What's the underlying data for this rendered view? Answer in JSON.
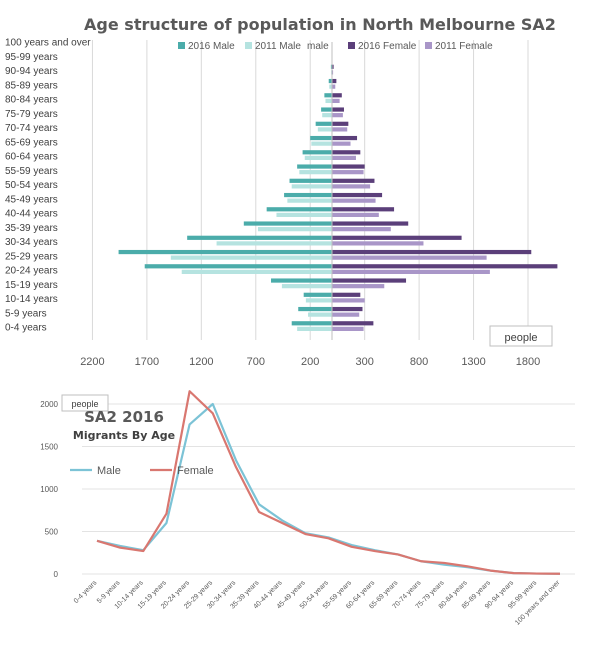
{
  "chart_data": [
    {
      "type": "bar",
      "orientation": "horizontal",
      "title": "Age structure of population in North Melbourne SA2",
      "unit_label": "people",
      "categories": [
        "0-4 years",
        "5-9 years",
        "10-14 years",
        "15-19 years",
        "20-24 years",
        "25-29 years",
        "30-34 years",
        "35-39 years",
        "40-44 years",
        "45-49 years",
        "50-54 years",
        "55-59 years",
        "60-64 years",
        "65-69 years",
        "70-74 years",
        "75-79 years",
        "80-84 years",
        "85-89 years",
        "90-94 years",
        "95-99 years",
        "100 years and over"
      ],
      "series": [
        {
          "name": "2016 Male",
          "color": "#4bacaa",
          "side": "left",
          "values": [
            370,
            310,
            260,
            560,
            1720,
            1960,
            1330,
            810,
            600,
            440,
            390,
            320,
            270,
            200,
            150,
            100,
            70,
            30,
            10,
            0,
            0
          ]
        },
        {
          "name": "2011 Male",
          "color": "#b5e3e0",
          "side": "left",
          "values": [
            320,
            220,
            240,
            460,
            1380,
            1480,
            1060,
            680,
            510,
            410,
            370,
            300,
            250,
            190,
            130,
            90,
            60,
            25,
            8,
            0,
            0
          ]
        },
        {
          "name": "2016 Female",
          "color": "#5b3f7a",
          "side": "right",
          "values": [
            380,
            280,
            260,
            680,
            2070,
            1830,
            1190,
            700,
            570,
            460,
            390,
            300,
            260,
            230,
            150,
            110,
            90,
            40,
            15,
            0,
            0
          ]
        },
        {
          "name": "2011 Female",
          "color": "#a996c8",
          "side": "right",
          "values": [
            290,
            250,
            300,
            480,
            1450,
            1420,
            840,
            540,
            430,
            400,
            350,
            290,
            220,
            170,
            140,
            100,
            70,
            30,
            10,
            0,
            0
          ]
        }
      ],
      "legend": [
        "2016 Male",
        "2011 Male",
        "male",
        "2016 Female",
        "2011 Female"
      ],
      "xticks": [
        "2200",
        "1700",
        "1200",
        "700",
        "200",
        "300",
        "800",
        "1300",
        "1800"
      ],
      "legend_position": "top",
      "grid": true
    },
    {
      "type": "line",
      "title": "SA2 2016",
      "subtitle": "Migrants By Age",
      "unit_label": "people",
      "categories": [
        "0-4 years",
        "5-9 years",
        "10-14 years",
        "15-19 years",
        "20-24 years",
        "25-29 years",
        "30-34 years",
        "35-39 years",
        "40-44 years",
        "45-49 years",
        "50-54 years",
        "55-59 years",
        "60-64 years",
        "65-69 years",
        "70-74 years",
        "75-79 years",
        "80-84 years",
        "85-89 years",
        "90-94 years",
        "95-99 years",
        "100 years and over"
      ],
      "series": [
        {
          "name": "Male",
          "color": "#7cc3d6",
          "values": [
            390,
            330,
            280,
            600,
            1760,
            2000,
            1340,
            820,
            630,
            480,
            430,
            340,
            280,
            230,
            150,
            110,
            80,
            40,
            10,
            5,
            3
          ]
        },
        {
          "name": "Female",
          "color": "#d97770",
          "values": [
            390,
            310,
            270,
            710,
            2150,
            1890,
            1260,
            730,
            600,
            470,
            420,
            320,
            270,
            230,
            150,
            130,
            90,
            40,
            10,
            5,
            3
          ]
        }
      ],
      "yticks": [
        0,
        500,
        1000,
        1500,
        2000
      ],
      "ylim": [
        0,
        2200
      ],
      "legend_position": "top-left",
      "grid": true
    }
  ]
}
